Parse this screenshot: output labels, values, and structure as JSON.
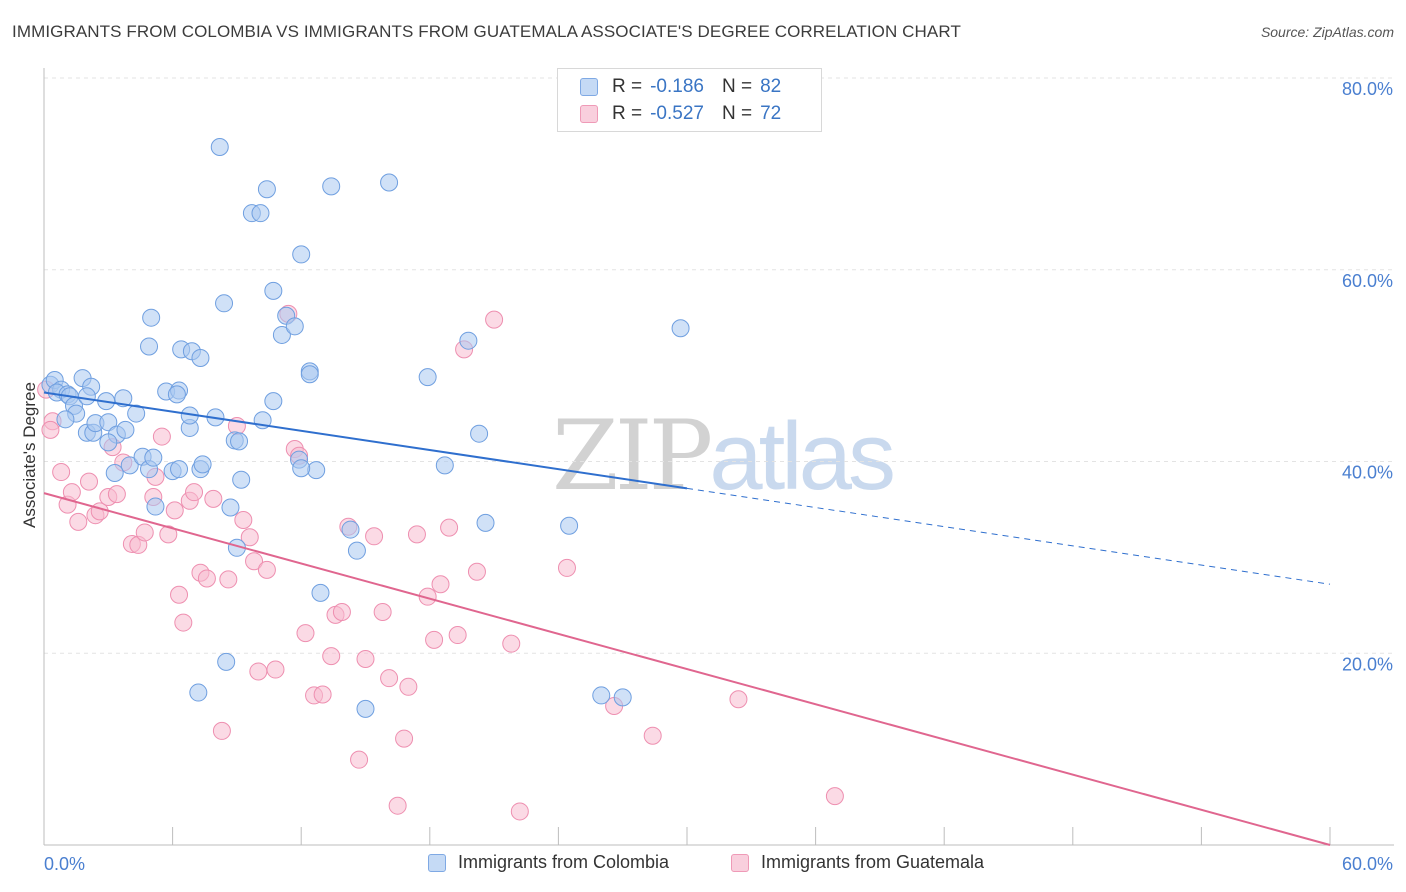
{
  "header": {
    "title": "IMMIGRANTS FROM COLOMBIA VS IMMIGRANTS FROM GUATEMALA ASSOCIATE'S DEGREE CORRELATION CHART",
    "source": "Source: ZipAtlas.com"
  },
  "watermark": {
    "zip": "ZIP",
    "atlas": "atlas"
  },
  "legend": {
    "colombia": {
      "r_label": "R =",
      "r_value": "-0.186",
      "n_label": "N =",
      "n_value": "82"
    },
    "guatemala": {
      "r_label": "R =",
      "r_value": "-0.527",
      "n_label": "N =",
      "n_value": "72"
    }
  },
  "bottom_legend": {
    "colombia": "Immigrants from Colombia",
    "guatemala": "Immigrants from Guatemala"
  },
  "colors": {
    "colombia_fill": "#a9c8f0",
    "colombia_stroke": "#6f9fe0",
    "colombia_line": "#2f6fce",
    "guatemala_fill": "#f7bcd0",
    "guatemala_stroke": "#ee8fb0",
    "guatemala_line": "#e0668f",
    "tick_text": "#4a7fd0",
    "grid": "#e3e3e3"
  },
  "chart_data": {
    "type": "scatter",
    "title": "IMMIGRANTS FROM COLOMBIA VS IMMIGRANTS FROM GUATEMALA ASSOCIATE'S DEGREE CORRELATION CHART",
    "xlabel": "",
    "ylabel": "Associate's Degree",
    "xlim": [
      0,
      60
    ],
    "ylim": [
      0,
      80
    ],
    "x_tick_labels": [
      "0.0%",
      "60.0%"
    ],
    "y_ticks": [
      20,
      40,
      60,
      80
    ],
    "y_tick_labels": [
      "20.0%",
      "40.0%",
      "60.0%",
      "80.0%"
    ],
    "grid": true,
    "legend_position": "top-center",
    "series": [
      {
        "name": "Immigrants from Colombia",
        "color": "#6f9fe0",
        "trend": {
          "x": [
            0,
            30
          ],
          "y": [
            47.2,
            37.2
          ],
          "dashed_to": [
            60,
            27.2
          ]
        },
        "points": [
          [
            0.3,
            48
          ],
          [
            0.5,
            48.5
          ],
          [
            0.8,
            47.5
          ],
          [
            0.6,
            47.2
          ],
          [
            1.1,
            47
          ],
          [
            1.2,
            46.8
          ],
          [
            1.4,
            45.8
          ],
          [
            1.5,
            45
          ],
          [
            1.8,
            48.7
          ],
          [
            2.2,
            47.8
          ],
          [
            2.0,
            43
          ],
          [
            2.3,
            43
          ],
          [
            2.4,
            44
          ],
          [
            2.9,
            46.3
          ],
          [
            3.0,
            44.1
          ],
          [
            3.4,
            42.8
          ],
          [
            3.0,
            42
          ],
          [
            3.7,
            46.6
          ],
          [
            3.8,
            43.3
          ],
          [
            4.3,
            45
          ],
          [
            4.0,
            39.6
          ],
          [
            4.6,
            40.5
          ],
          [
            4.9,
            39.2
          ],
          [
            5.1,
            40.4
          ],
          [
            5.2,
            35.3
          ],
          [
            4.9,
            52
          ],
          [
            5.0,
            55
          ],
          [
            5.7,
            47.3
          ],
          [
            6.0,
            39
          ],
          [
            6.3,
            47.4
          ],
          [
            6.8,
            43.5
          ],
          [
            6.8,
            44.8
          ],
          [
            6.2,
            47
          ],
          [
            6.4,
            51.7
          ],
          [
            6.9,
            51.5
          ],
          [
            7.3,
            50.8
          ],
          [
            7.3,
            39.2
          ],
          [
            8.0,
            44.6
          ],
          [
            7.4,
            39.7
          ],
          [
            8.4,
            56.5
          ],
          [
            8.7,
            35.2
          ],
          [
            8.9,
            42.2
          ],
          [
            9.2,
            38.1
          ],
          [
            9.1,
            42.1
          ],
          [
            9.7,
            65.9
          ],
          [
            10.1,
            65.9
          ],
          [
            10.4,
            68.4
          ],
          [
            10.2,
            44.3
          ],
          [
            10.7,
            46.3
          ],
          [
            10.7,
            57.8
          ],
          [
            11.1,
            53.2
          ],
          [
            11.3,
            55.2
          ],
          [
            11.7,
            54.1
          ],
          [
            12.0,
            61.6
          ],
          [
            12.4,
            49.4
          ],
          [
            12.4,
            49.1
          ],
          [
            12.7,
            39.1
          ],
          [
            11.9,
            40.2
          ],
          [
            9.0,
            31
          ],
          [
            12.9,
            26.3
          ],
          [
            8.2,
            72.8
          ],
          [
            12.0,
            39.3
          ],
          [
            13.4,
            68.7
          ],
          [
            14.3,
            32.9
          ],
          [
            14.6,
            30.7
          ],
          [
            15.0,
            14.2
          ],
          [
            16.1,
            69.1
          ],
          [
            17.9,
            48.8
          ],
          [
            18.7,
            39.6
          ],
          [
            19.8,
            52.6
          ],
          [
            20.3,
            42.9
          ],
          [
            20.6,
            33.6
          ],
          [
            24.5,
            33.3
          ],
          [
            26.0,
            15.6
          ],
          [
            27.0,
            15.4
          ],
          [
            29.7,
            53.9
          ],
          [
            8.5,
            19.1
          ],
          [
            7.2,
            15.9
          ],
          [
            6.3,
            39.2
          ],
          [
            3.3,
            38.8
          ],
          [
            2.0,
            46.8
          ],
          [
            1.0,
            44.4
          ]
        ]
      },
      {
        "name": "Immigrants from Guatemala",
        "color": "#ee8fb0",
        "trend": {
          "x": [
            0,
            60
          ],
          "y": [
            36.7,
            0
          ]
        },
        "points": [
          [
            0.1,
            47.5
          ],
          [
            0.4,
            44.2
          ],
          [
            0.3,
            43.3
          ],
          [
            0.8,
            38.9
          ],
          [
            1.1,
            35.5
          ],
          [
            1.3,
            36.8
          ],
          [
            1.6,
            33.7
          ],
          [
            2.1,
            37.9
          ],
          [
            2.4,
            34.4
          ],
          [
            2.6,
            34.8
          ],
          [
            3.0,
            36.3
          ],
          [
            3.2,
            41.5
          ],
          [
            3.4,
            36.6
          ],
          [
            3.7,
            39.9
          ],
          [
            4.1,
            31.4
          ],
          [
            4.4,
            31.3
          ],
          [
            4.7,
            32.6
          ],
          [
            5.1,
            36.3
          ],
          [
            5.2,
            38.4
          ],
          [
            5.5,
            42.6
          ],
          [
            5.8,
            32.4
          ],
          [
            6.1,
            34.9
          ],
          [
            6.3,
            26.1
          ],
          [
            6.5,
            23.2
          ],
          [
            6.8,
            35.9
          ],
          [
            7.0,
            36.8
          ],
          [
            7.3,
            28.4
          ],
          [
            7.6,
            27.8
          ],
          [
            7.9,
            36.1
          ],
          [
            8.3,
            11.9
          ],
          [
            8.6,
            27.7
          ],
          [
            9.0,
            43.7
          ],
          [
            9.3,
            33.9
          ],
          [
            9.6,
            32.1
          ],
          [
            9.8,
            29.6
          ],
          [
            10.0,
            18.1
          ],
          [
            10.4,
            28.7
          ],
          [
            10.8,
            18.3
          ],
          [
            11.4,
            55.4
          ],
          [
            11.7,
            41.3
          ],
          [
            11.9,
            40.6
          ],
          [
            12.2,
            22.1
          ],
          [
            12.6,
            15.6
          ],
          [
            13.0,
            15.7
          ],
          [
            13.4,
            19.7
          ],
          [
            13.6,
            24
          ],
          [
            13.9,
            24.3
          ],
          [
            14.2,
            33.2
          ],
          [
            14.7,
            8.9
          ],
          [
            15.0,
            19.4
          ],
          [
            15.4,
            32.2
          ],
          [
            15.8,
            24.3
          ],
          [
            16.1,
            17.4
          ],
          [
            16.5,
            4.1
          ],
          [
            16.8,
            11.1
          ],
          [
            17.0,
            16.5
          ],
          [
            17.4,
            32.4
          ],
          [
            17.9,
            25.9
          ],
          [
            18.2,
            21.4
          ],
          [
            18.5,
            27.2
          ],
          [
            18.9,
            33.1
          ],
          [
            19.3,
            21.9
          ],
          [
            19.6,
            51.7
          ],
          [
            20.2,
            28.5
          ],
          [
            21.0,
            54.8
          ],
          [
            21.8,
            21.0
          ],
          [
            22.2,
            3.5
          ],
          [
            24.4,
            28.9
          ],
          [
            26.6,
            14.5
          ],
          [
            28.4,
            11.4
          ],
          [
            32.4,
            15.2
          ],
          [
            36.9,
            5.1
          ]
        ]
      }
    ]
  }
}
